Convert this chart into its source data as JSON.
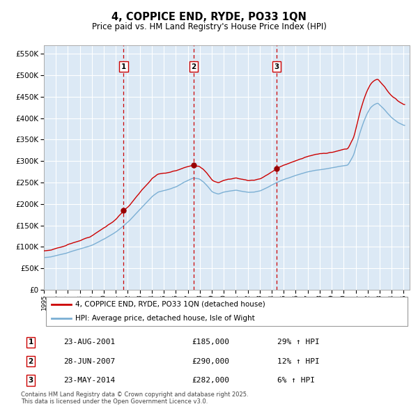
{
  "title": "4, COPPICE END, RYDE, PO33 1QN",
  "subtitle": "Price paid vs. HM Land Registry's House Price Index (HPI)",
  "ylim": [
    0,
    570000
  ],
  "yticks": [
    0,
    50000,
    100000,
    150000,
    200000,
    250000,
    300000,
    350000,
    400000,
    450000,
    500000,
    550000
  ],
  "ytick_labels": [
    "£0",
    "£50K",
    "£100K",
    "£150K",
    "£200K",
    "£250K",
    "£300K",
    "£350K",
    "£400K",
    "£450K",
    "£500K",
    "£550K"
  ],
  "bg_color": "#ffffff",
  "plot_bg_color": "#dce9f5",
  "line_color_hpi": "#7bafd4",
  "line_color_price": "#cc0000",
  "sale_marker_color": "#990000",
  "vline_color": "#cc0000",
  "grid_color": "#ffffff",
  "transactions": [
    {
      "num": 1,
      "date": "23-AUG-2001",
      "price": 185000,
      "pct": "29%",
      "x_year": 2001.64
    },
    {
      "num": 2,
      "date": "28-JUN-2007",
      "price": 290000,
      "pct": "12%",
      "x_year": 2007.49
    },
    {
      "num": 3,
      "date": "23-MAY-2014",
      "price": 282000,
      "pct": "6%",
      "x_year": 2014.39
    }
  ],
  "footer": "Contains HM Land Registry data © Crown copyright and database right 2025.\nThis data is licensed under the Open Government Licence v3.0.",
  "legend_line1": "4, COPPICE END, RYDE, PO33 1QN (detached house)",
  "legend_line2": "HPI: Average price, detached house, Isle of Wight",
  "xlim": [
    1995.0,
    2025.5
  ],
  "xticks": [
    1995,
    1996,
    1997,
    1998,
    1999,
    2000,
    2001,
    2002,
    2003,
    2004,
    2005,
    2006,
    2007,
    2008,
    2009,
    2010,
    2011,
    2012,
    2013,
    2014,
    2015,
    2016,
    2017,
    2018,
    2019,
    2020,
    2021,
    2022,
    2023,
    2024,
    2025
  ]
}
